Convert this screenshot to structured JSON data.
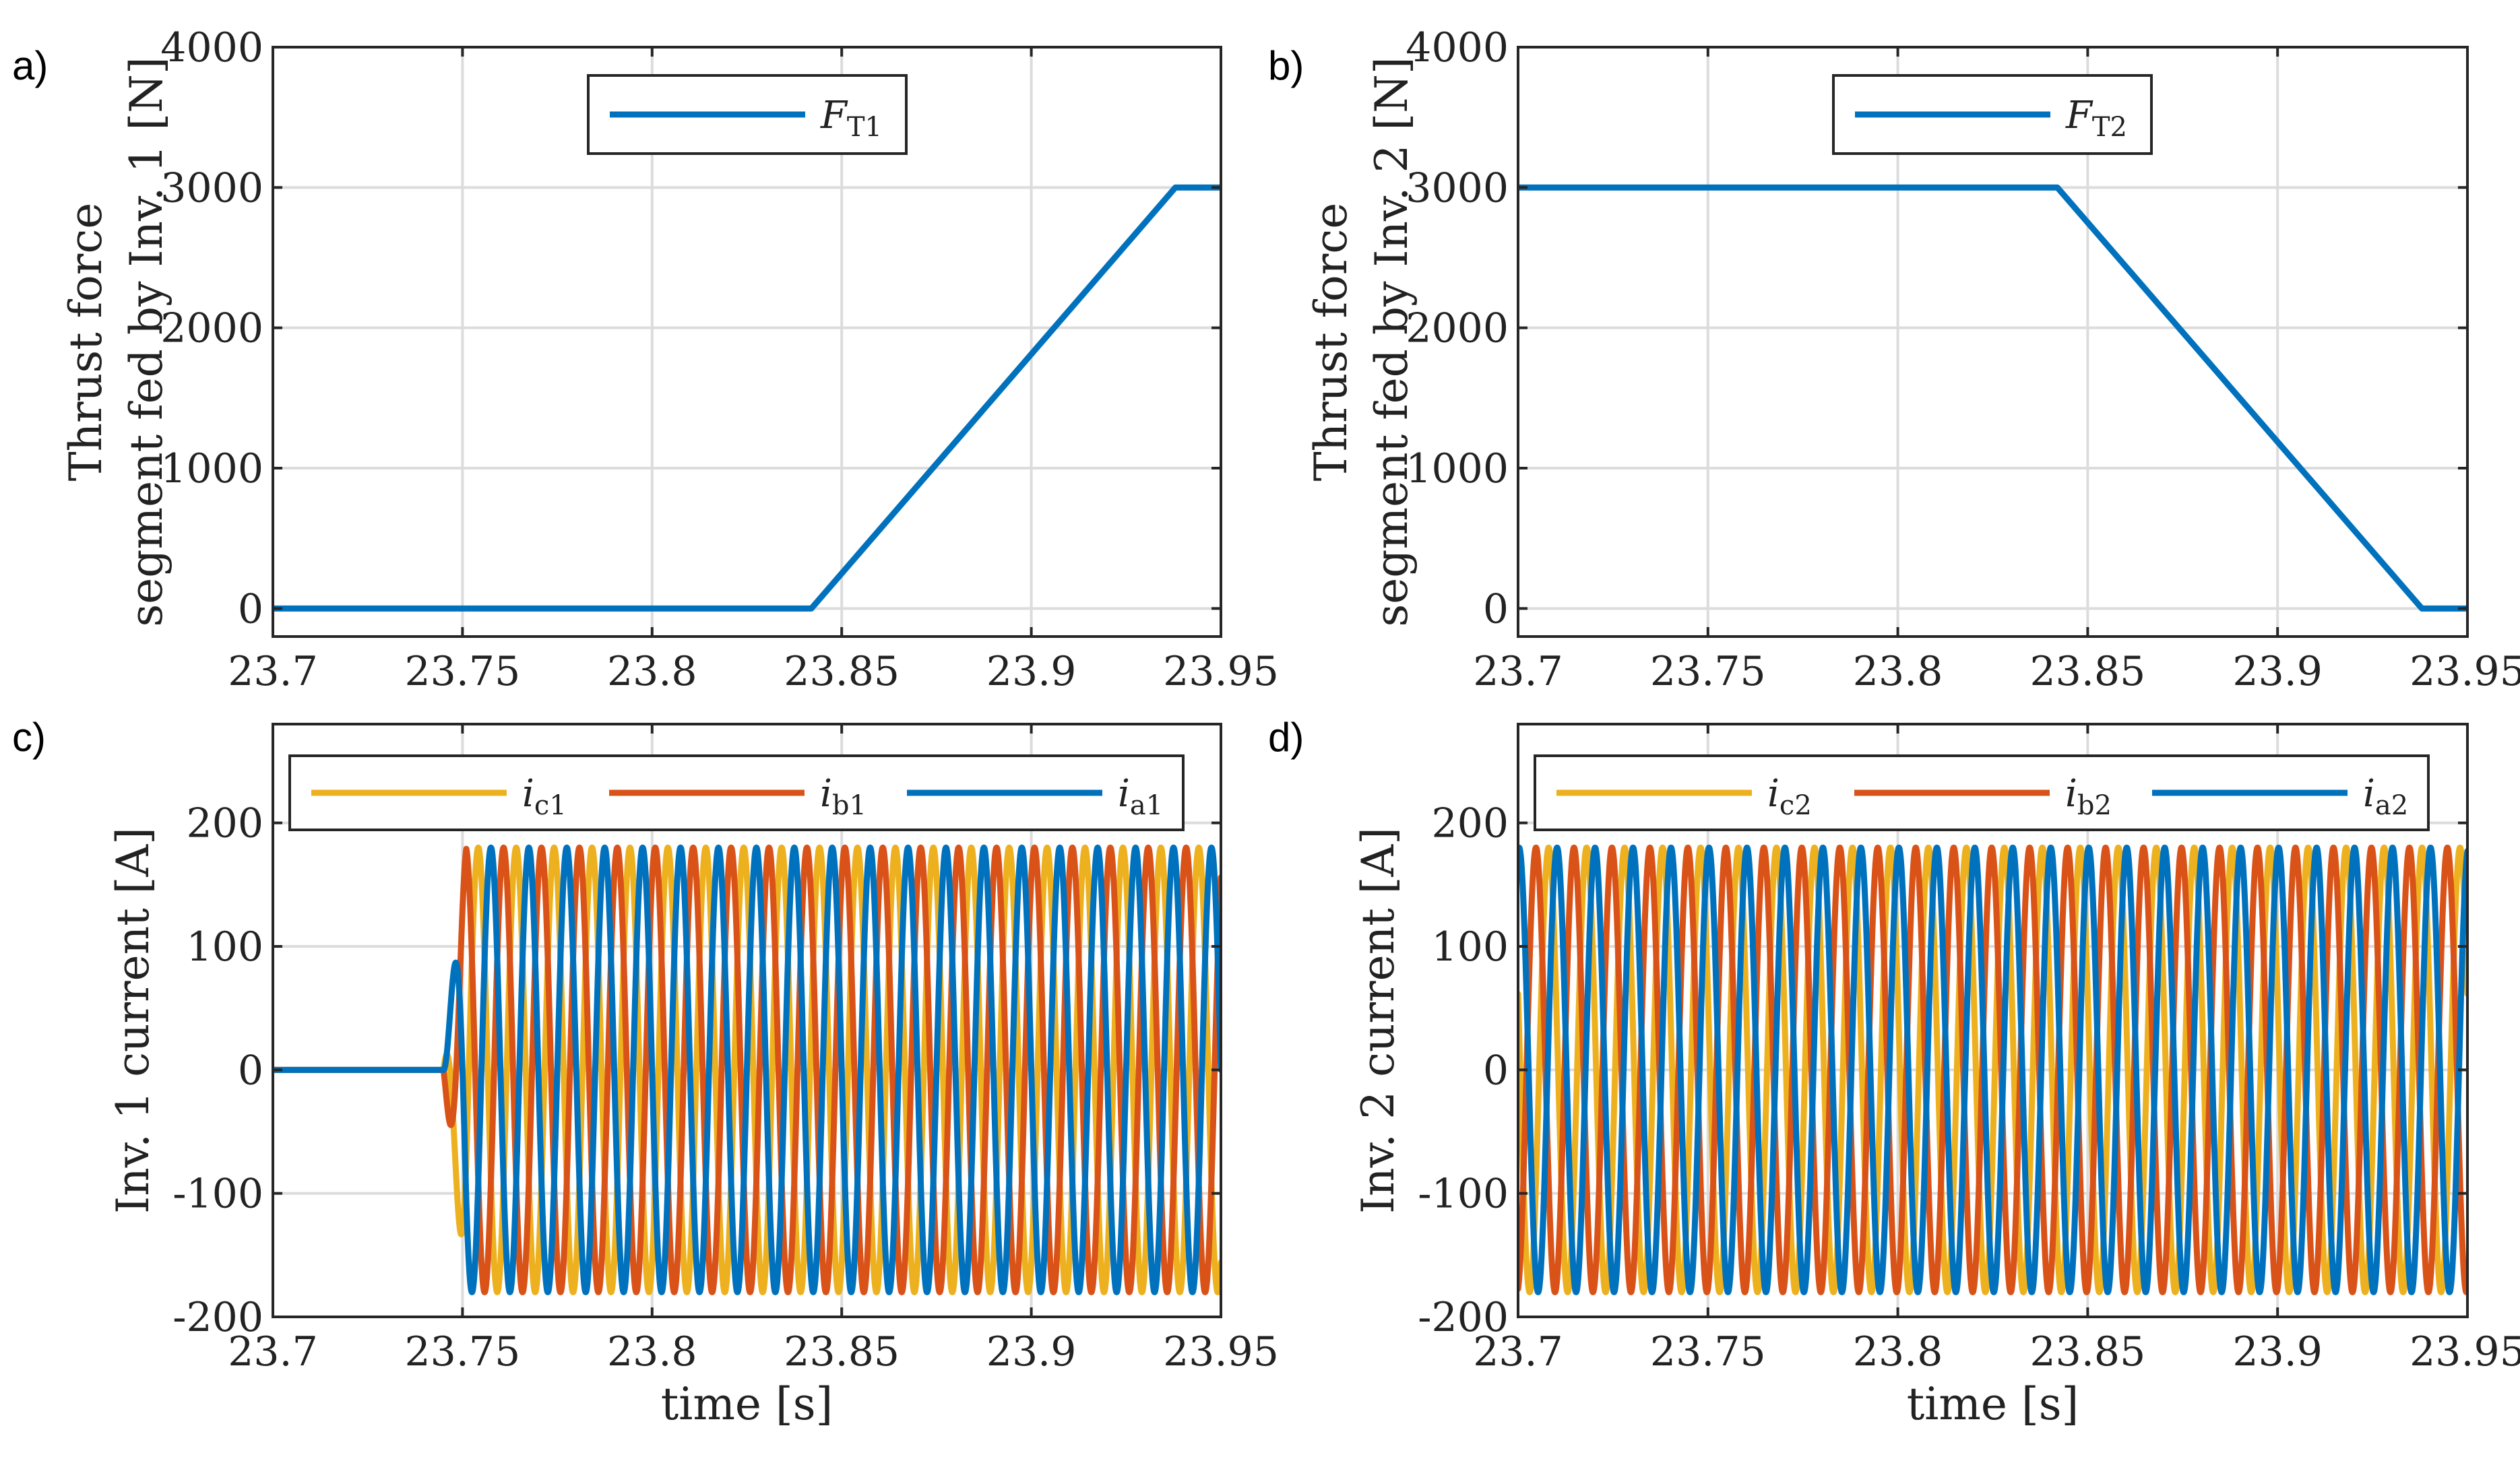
{
  "chart_data": [
    {
      "id": "a",
      "panel_label": "a)",
      "type": "line",
      "ylabel_lines": [
        "Thrust force",
        "segment fed by Inv. 1 [N]"
      ],
      "xlabel": "",
      "xlim": [
        23.7,
        23.95
      ],
      "ylim": [
        -200,
        4000
      ],
      "xticks": [
        23.7,
        23.75,
        23.8,
        23.85,
        23.9,
        23.95
      ],
      "xtick_labels": [
        "23.7",
        "23.75",
        "23.8",
        "23.85",
        "23.9",
        "23.95"
      ],
      "yticks": [
        0,
        1000,
        2000,
        3000,
        4000
      ],
      "ytick_labels": [
        "0",
        "1000",
        "2000",
        "3000",
        "4000"
      ],
      "grid": true,
      "legend_position": "top-center",
      "series": [
        {
          "name": "F",
          "sub": "T1",
          "kind": "ramp",
          "points": [
            [
              23.7,
              0
            ],
            [
              23.842,
              0
            ],
            [
              23.938,
              3000
            ],
            [
              23.95,
              3000
            ]
          ]
        }
      ]
    },
    {
      "id": "b",
      "panel_label": "b)",
      "type": "line",
      "ylabel_lines": [
        "Thrust force",
        "segment fed by Inv. 2 [N]"
      ],
      "xlabel": "",
      "xlim": [
        23.7,
        23.95
      ],
      "ylim": [
        -200,
        4000
      ],
      "xticks": [
        23.7,
        23.75,
        23.8,
        23.85,
        23.9,
        23.95
      ],
      "xtick_labels": [
        "23.7",
        "23.75",
        "23.8",
        "23.85",
        "23.9",
        "23.95"
      ],
      "yticks": [
        0,
        1000,
        2000,
        3000,
        4000
      ],
      "ytick_labels": [
        "0",
        "1000",
        "2000",
        "3000",
        "4000"
      ],
      "grid": true,
      "legend_position": "top-center",
      "series": [
        {
          "name": "F",
          "sub": "T2",
          "kind": "ramp",
          "points": [
            [
              23.7,
              3000
            ],
            [
              23.842,
              3000
            ],
            [
              23.938,
              0
            ],
            [
              23.95,
              0
            ]
          ]
        }
      ]
    },
    {
      "id": "c",
      "panel_label": "c)",
      "type": "line",
      "ylabel_lines": [
        "Inv. 1 current [A]"
      ],
      "xlabel": "time [s]",
      "xlim": [
        23.7,
        23.95
      ],
      "ylim": [
        -200,
        280
      ],
      "xticks": [
        23.7,
        23.75,
        23.8,
        23.85,
        23.9,
        23.95
      ],
      "xtick_labels": [
        "23.7",
        "23.75",
        "23.8",
        "23.85",
        "23.9",
        "23.95"
      ],
      "yticks": [
        -200,
        -100,
        0,
        100,
        200
      ],
      "ytick_labels": [
        "-200",
        "-100",
        "0",
        "100",
        "200"
      ],
      "grid": true,
      "legend_position": "top",
      "sine": {
        "amplitude": 180,
        "frequency_hz": 100,
        "start_time": 23.745,
        "ramp_duration": 0.006
      },
      "series": [
        {
          "name": "i",
          "sub": "c1",
          "phase_deg": -240
        },
        {
          "name": "i",
          "sub": "b1",
          "phase_deg": -120
        },
        {
          "name": "i",
          "sub": "a1",
          "phase_deg": 0
        }
      ]
    },
    {
      "id": "d",
      "panel_label": "d)",
      "type": "line",
      "ylabel_lines": [
        "Inv. 2 current [A]"
      ],
      "xlabel": "time [s]",
      "xlim": [
        23.7,
        23.95
      ],
      "ylim": [
        -200,
        280
      ],
      "xticks": [
        23.7,
        23.75,
        23.8,
        23.85,
        23.9,
        23.95
      ],
      "xtick_labels": [
        "23.7",
        "23.75",
        "23.8",
        "23.85",
        "23.9",
        "23.95"
      ],
      "yticks": [
        -200,
        -100,
        0,
        100,
        200
      ],
      "ytick_labels": [
        "-200",
        "-100",
        "0",
        "100",
        "200"
      ],
      "grid": true,
      "legend_position": "top",
      "sine": {
        "amplitude": 180,
        "frequency_hz": 100,
        "start_time": 23.7,
        "ramp_duration": 0
      },
      "series": [
        {
          "name": "i",
          "sub": "c2",
          "phase_deg": -200
        },
        {
          "name": "i",
          "sub": "b2",
          "phase_deg": -80
        },
        {
          "name": "i",
          "sub": "a2",
          "phase_deg": 80
        }
      ]
    }
  ],
  "colors": {
    "blue": "#0072BD",
    "orange": "#D95319",
    "yellow": "#EDB120",
    "grid": "#dcdcdc",
    "axis": "#262626"
  },
  "series_colors": {
    "c1": "#EDB120",
    "b1": "#D95319",
    "a1": "#0072BD",
    "c2": "#EDB120",
    "b2": "#D95319",
    "a2": "#0072BD",
    "T1": "#0072BD",
    "T2": "#0072BD"
  }
}
